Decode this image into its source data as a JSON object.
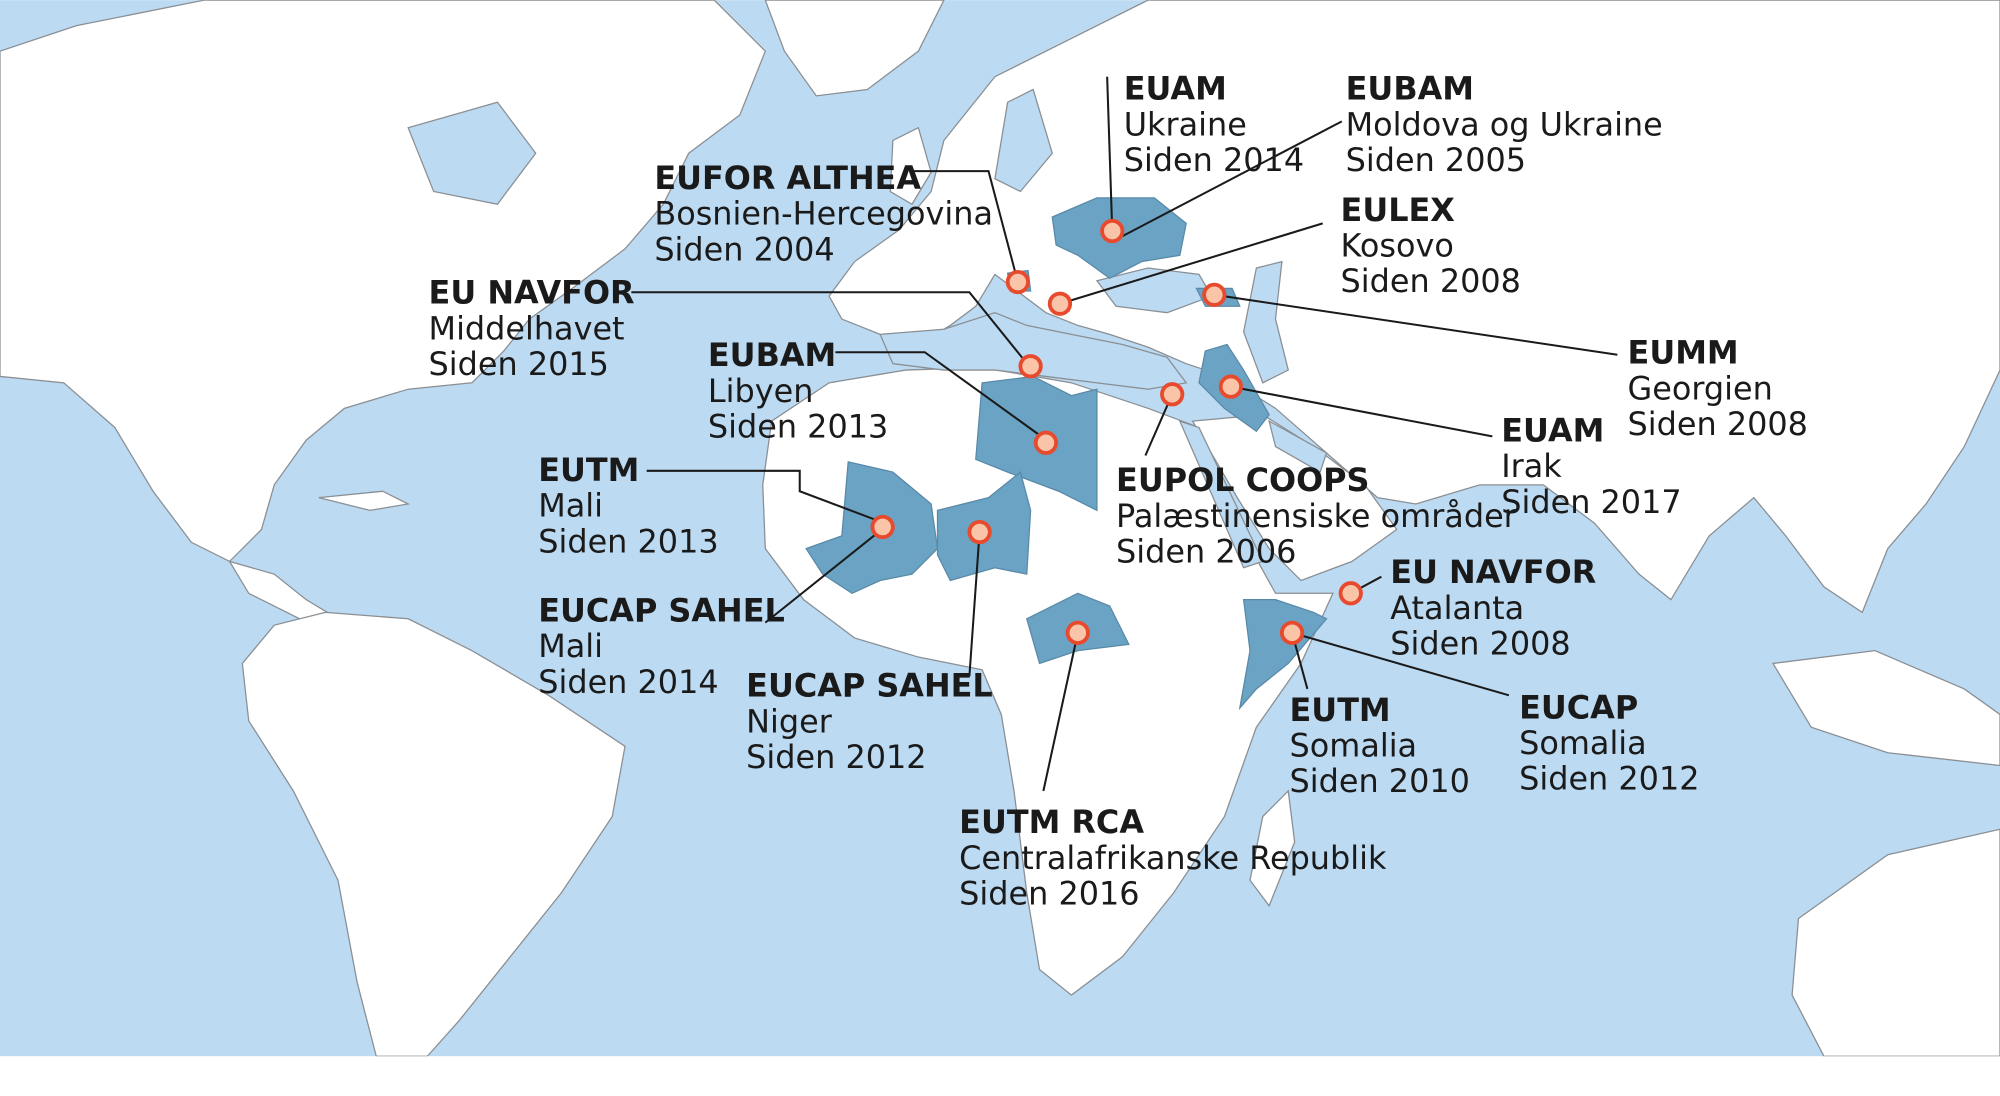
{
  "colors": {
    "ocean": "#bcdaf2",
    "land": "#ffffff",
    "mission_country": "#6aa3c4",
    "marker_fill": "#f9c4a8",
    "marker_stroke": "#e84a2e"
  },
  "missions": [
    {
      "name": "EUAM",
      "place": "Ukraine",
      "since": "Siden 2014"
    },
    {
      "name": "EUBAM",
      "place": "Moldova og Ukraine",
      "since": "Siden 2005"
    },
    {
      "name": "EUFOR ALTHEA",
      "place": "Bosnien-Hercegovina",
      "since": "Siden 2004"
    },
    {
      "name": "EULEX",
      "place": "Kosovo",
      "since": "Siden 2008"
    },
    {
      "name": "EU NAVFOR",
      "place": "Middelhavet",
      "since": "Siden 2015"
    },
    {
      "name": "EUBAM",
      "place": "Libyen",
      "since": "Siden 2013"
    },
    {
      "name": "EUMM",
      "place": "Georgien",
      "since": "Siden 2008"
    },
    {
      "name": "EUAM",
      "place": "Irak",
      "since": "Siden 2017"
    },
    {
      "name": "EUPOL COOPS",
      "place": "Palæstinensiske områder",
      "since": "Siden 2006"
    },
    {
      "name": "EUTM",
      "place": "Mali",
      "since": "Siden 2013"
    },
    {
      "name": "EUCAP SAHEL",
      "place": "Mali",
      "since": "Siden 2014"
    },
    {
      "name": "EUCAP SAHEL",
      "place": "Niger",
      "since": "Siden 2012"
    },
    {
      "name": "EUTM RCA",
      "place": "Centralafrikanske Republik",
      "since": "Siden 2016"
    },
    {
      "name": "EU NAVFOR",
      "place": "Atalanta",
      "since": "Siden 2008"
    },
    {
      "name": "EUTM",
      "place": "Somalia",
      "since": "Siden 2010"
    },
    {
      "name": "EUCAP",
      "place": "Somalia",
      "since": "Siden 2012"
    }
  ]
}
